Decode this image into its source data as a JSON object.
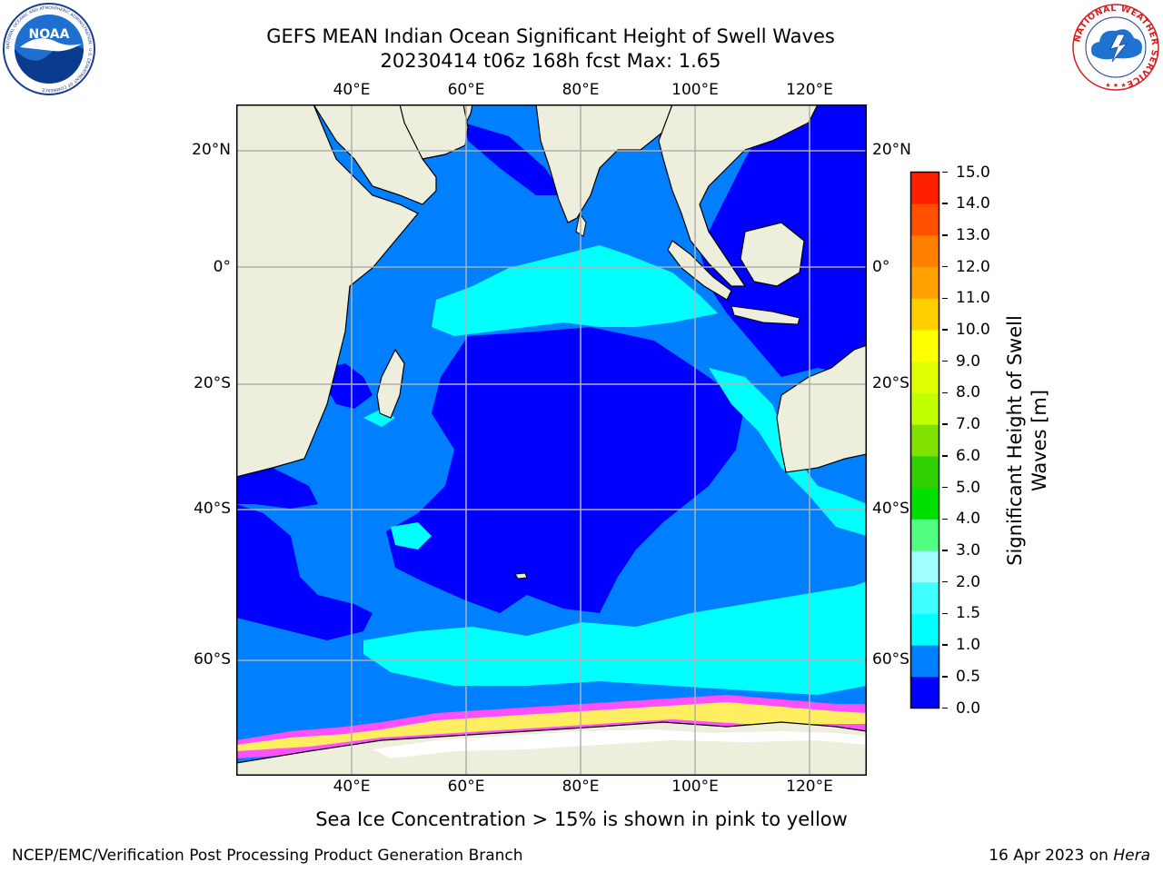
{
  "header": {
    "title_line1": "GEFS MEAN Indian Ocean Significant Height of Swell Waves",
    "title_line2": "20230414 t06z 168h fcst   Max: 1.65"
  },
  "logos": {
    "left": "NOAA",
    "left_ring_text": "NATIONAL OCEANIC AND ATMOSPHERIC ADMINISTRATION · U.S. DEPARTMENT OF COMMERCE",
    "right_ring_text": "NATIONAL WEATHER SERVICE"
  },
  "map": {
    "lon_labels": [
      "40°E",
      "60°E",
      "80°E",
      "100°E",
      "120°E"
    ],
    "lat_labels": [
      "20°N",
      "0°",
      "20°S",
      "40°S",
      "60°S"
    ],
    "colors": {
      "land": "#eeeedc",
      "ocean_0_05": "#0000ff",
      "ocean_05_10": "#0080ff",
      "ocean_10_15": "#00ffff",
      "ice_pink": "#ff50ff",
      "ice_yellow": "#ffff30",
      "grid": "#b0b0b0"
    }
  },
  "colorbar": {
    "levels": [
      "0.0",
      "0.5",
      "1.0",
      "1.5",
      "2.0",
      "3.0",
      "4.0",
      "5.0",
      "6.0",
      "7.0",
      "8.0",
      "9.0",
      "10.0",
      "11.0",
      "12.0",
      "13.0",
      "14.0",
      "15.0"
    ],
    "colors": [
      "#0000ff",
      "#0080ff",
      "#00ffff",
      "#40ffff",
      "#a0ffff",
      "#50ff80",
      "#00e000",
      "#30d000",
      "#80e000",
      "#c0ff00",
      "#e0ff00",
      "#ffff00",
      "#ffd000",
      "#ffa000",
      "#ff8000",
      "#ff5000",
      "#ff2000"
    ],
    "title_line1": "Significant Height of Swell",
    "title_line2": "Waves [m]"
  },
  "notes": {
    "ice": "Sea Ice Concentration > 15% is shown in pink to yellow"
  },
  "footer": {
    "left": "NCEP/EMC/Verification Post Processing Product Generation Branch",
    "right_prefix": "16 Apr 2023 on ",
    "right_host": "Hera"
  }
}
